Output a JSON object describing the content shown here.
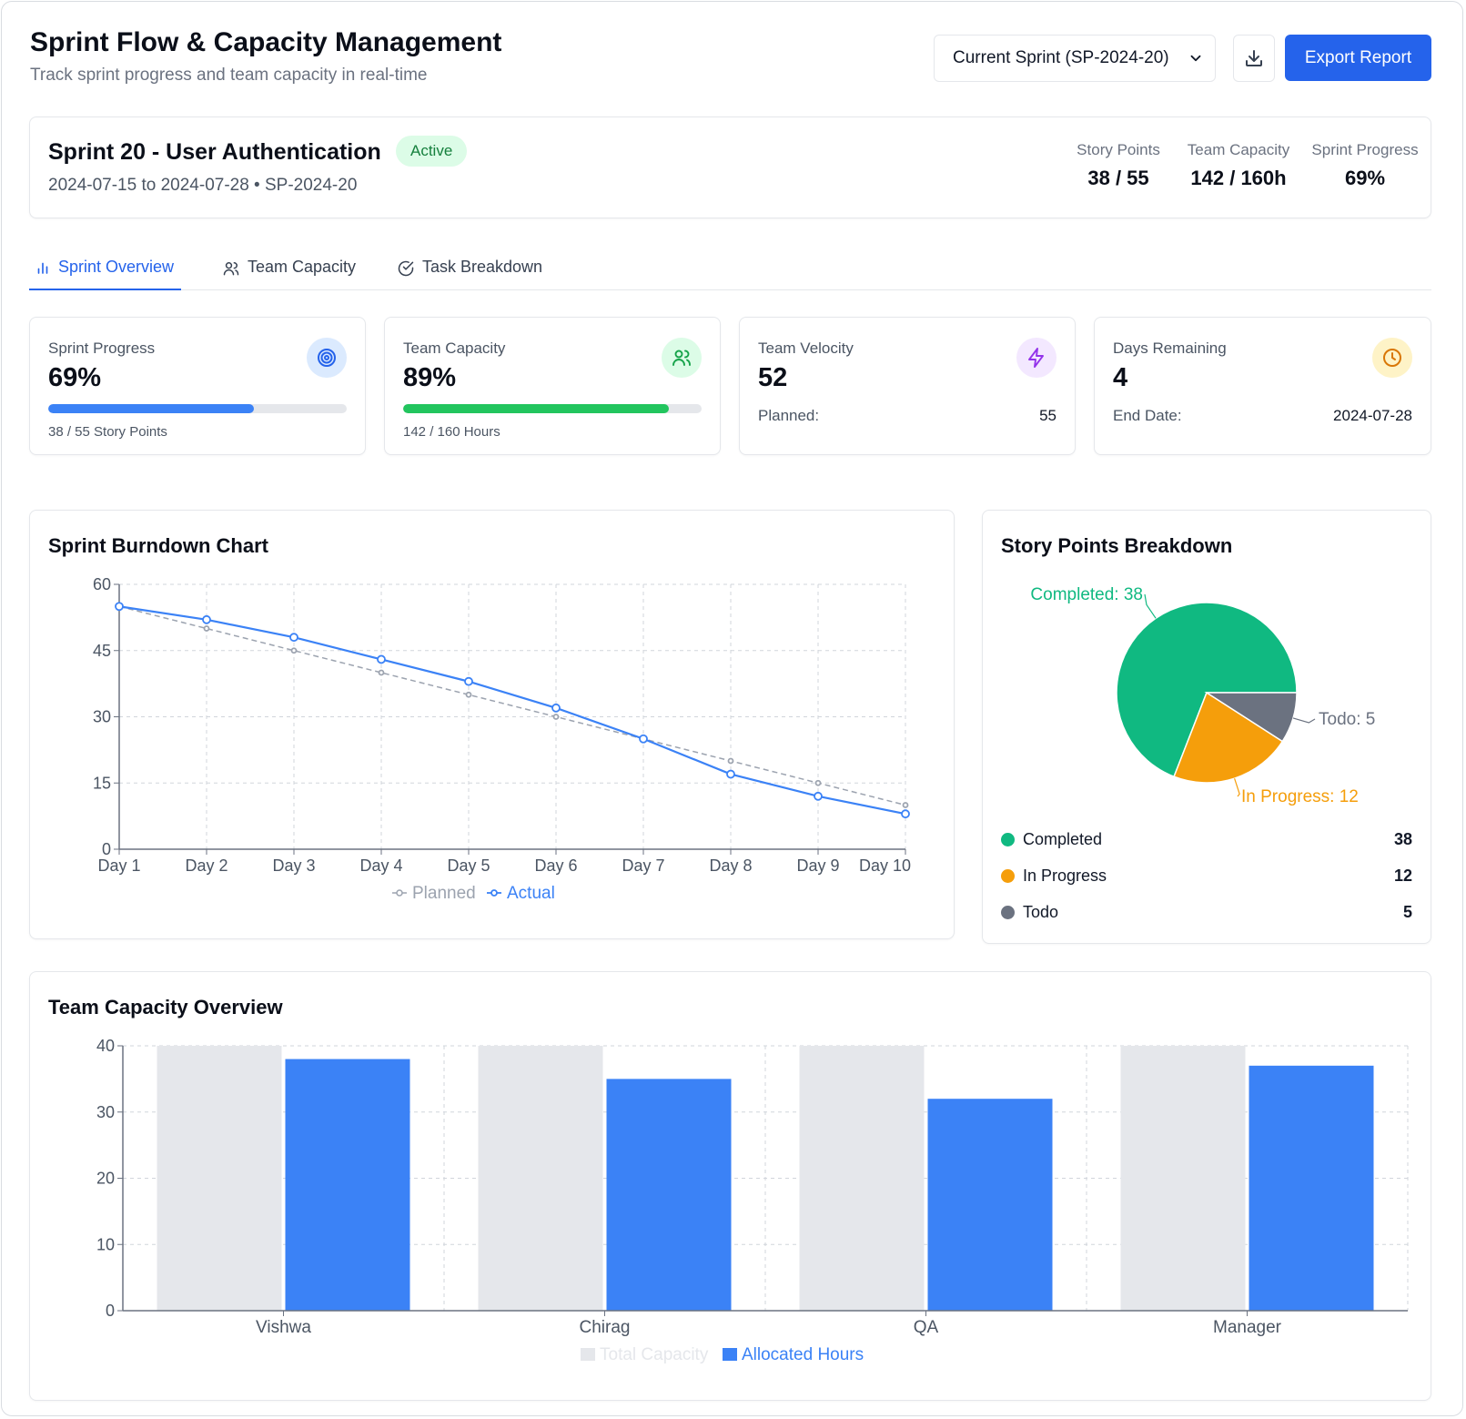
{
  "header": {
    "title": "Sprint Flow & Capacity Management",
    "subtitle": "Track sprint progress and team capacity in real-time",
    "sprint_select": "Current Sprint (SP-2024-20)",
    "download_icon": "download-icon",
    "export_label": "Export Report"
  },
  "sprint": {
    "name": "Sprint 20 - User Authentication",
    "status": "Active",
    "dates": "2024-07-15 to 2024-07-28 • SP-2024-20",
    "stats": [
      {
        "label": "Story Points",
        "value": "38 / 55"
      },
      {
        "label": "Team Capacity",
        "value": "142 / 160h"
      },
      {
        "label": "Sprint Progress",
        "value": "69%"
      }
    ]
  },
  "tabs": [
    {
      "label": "Sprint Overview",
      "icon": "bar-chart-icon"
    },
    {
      "label": "Team Capacity",
      "icon": "users-icon"
    },
    {
      "label": "Task Breakdown",
      "icon": "check-circle-icon"
    }
  ],
  "kpis": {
    "progress": {
      "label": "Sprint Progress",
      "value": "69%",
      "fraction": 0.69,
      "sub": "38 / 55 Story Points",
      "color": "#3b82f6",
      "icon": "target-icon"
    },
    "capacity": {
      "label": "Team Capacity",
      "value": "89%",
      "fraction": 0.89,
      "sub": "142 / 160 Hours",
      "color": "#22c55e",
      "icon": "users-icon"
    },
    "velocity": {
      "label": "Team Velocity",
      "value": "52",
      "row_label": "Planned:",
      "row_value": "55",
      "icon": "zap-icon"
    },
    "days": {
      "label": "Days Remaining",
      "value": "4",
      "row_label": "End Date:",
      "row_value": "2024-07-28",
      "icon": "clock-icon"
    }
  },
  "burndown": {
    "title": "Sprint Burndown Chart",
    "legend_planned": "Planned",
    "legend_actual": "Actual"
  },
  "breakdown": {
    "title": "Story Points Breakdown",
    "items": [
      {
        "name": "Completed",
        "value": "38",
        "color": "#10b981"
      },
      {
        "name": "In Progress",
        "value": "12",
        "color": "#f59e0b"
      },
      {
        "name": "Todo",
        "value": "5",
        "color": "#6b7280"
      }
    ],
    "slice_labels": {
      "completed": "Completed: 38",
      "in_progress": "In Progress: 12",
      "todo": "Todo: 5"
    }
  },
  "capacity_chart": {
    "title": "Team Capacity Overview",
    "legend_total": "Total Capacity",
    "legend_allocated": "Allocated Hours"
  },
  "chart_data": [
    {
      "type": "line",
      "title": "Sprint Burndown Chart",
      "categories": [
        "Day 1",
        "Day 2",
        "Day 3",
        "Day 4",
        "Day 5",
        "Day 6",
        "Day 7",
        "Day 8",
        "Day 9",
        "Day 10"
      ],
      "series": [
        {
          "name": "Planned",
          "values": [
            55,
            50,
            45,
            40,
            35,
            30,
            25,
            20,
            15,
            10
          ],
          "color": "#9ca3af"
        },
        {
          "name": "Actual",
          "values": [
            55,
            52,
            48,
            43,
            38,
            32,
            25,
            17,
            12,
            8
          ],
          "color": "#3b82f6"
        }
      ],
      "ylim": [
        0,
        60
      ],
      "yticks": [
        0,
        15,
        30,
        45,
        60
      ],
      "grid": true,
      "legend": "bottom"
    },
    {
      "type": "pie",
      "title": "Story Points Breakdown",
      "categories": [
        "Completed",
        "In Progress",
        "Todo"
      ],
      "values": [
        38,
        12,
        5
      ],
      "colors": [
        "#10b981",
        "#f59e0b",
        "#6b7280"
      ]
    },
    {
      "type": "bar",
      "title": "Team Capacity Overview",
      "categories": [
        "Vishwa",
        "Chirag",
        "QA",
        "Manager"
      ],
      "series": [
        {
          "name": "Total Capacity",
          "values": [
            40,
            40,
            40,
            40
          ],
          "color": "#e5e7eb"
        },
        {
          "name": "Allocated Hours",
          "values": [
            38,
            35,
            32,
            37
          ],
          "color": "#3b82f6"
        }
      ],
      "ylim": [
        0,
        40
      ],
      "yticks": [
        0,
        10,
        20,
        30,
        40
      ],
      "grid": true,
      "legend": "bottom"
    }
  ]
}
